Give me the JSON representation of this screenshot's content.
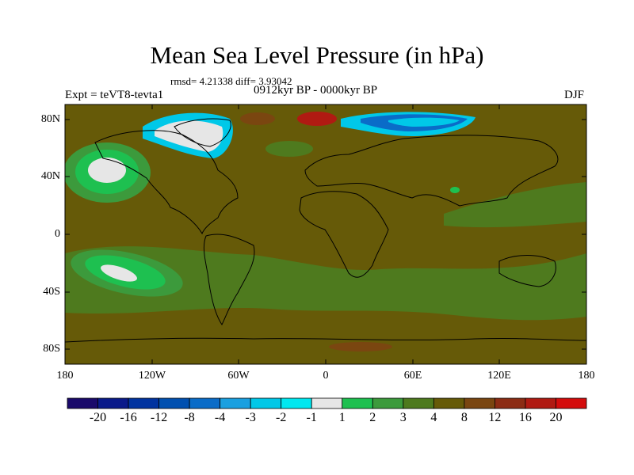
{
  "title": "Mean Sea Level Pressure (in hPa)",
  "stats": "rmsd= 4.21338 diff= 3.93042",
  "experiment": "Expt = teVT8-tevta1",
  "period": "0912kyr BP - 0000kyr BP",
  "season": "DJF",
  "lat_labels": [
    "80N",
    "40N",
    "0",
    "40S",
    "80S"
  ],
  "lon_labels": [
    "180",
    "120W",
    "60W",
    "0",
    "60E",
    "120E",
    "180"
  ],
  "colorbar": {
    "colors": [
      "#1a0a6b",
      "#0a1a8a",
      "#0033a0",
      "#0050b0",
      "#0a6cc8",
      "#1aa0e0",
      "#00c8e8",
      "#00e8f0",
      "#e6e6e6",
      "#1ec050",
      "#3c9a3c",
      "#4e7a1e",
      "#665a08",
      "#7a4610",
      "#8c2c14",
      "#b01a12",
      "#d40c0c"
    ],
    "labels": [
      "-20",
      "-16",
      "-12",
      "-8",
      "-4",
      "-3",
      "-2",
      "-1",
      "1",
      "2",
      "3",
      "4",
      "8",
      "12",
      "16",
      "20"
    ]
  },
  "map_colors": {
    "background": "#665a08",
    "low_anomaly_3": "#4e7a1e",
    "low_anomaly_2": "#3c9a3c",
    "low_anomaly_1": "#1ec050",
    "near_zero": "#e6e6e6",
    "neg_2": "#00c8e8",
    "neg_4": "#0a6cc8",
    "high_12": "#7a4610",
    "high_16": "#b01a12"
  }
}
